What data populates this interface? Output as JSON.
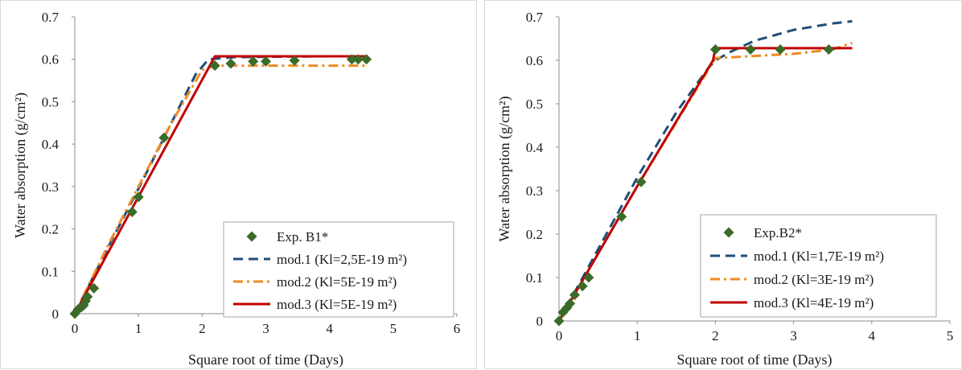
{
  "chart_data": [
    {
      "type": "scatter",
      "xlabel": "Square root of time (Days)",
      "ylabel": "Water absorption (g/cm²)",
      "xlim": [
        0,
        6
      ],
      "ylim": [
        0,
        0.7
      ],
      "x_ticks": [
        "0",
        "1",
        "2",
        "3",
        "4",
        "5",
        "6"
      ],
      "y_ticks": [
        "0",
        "0.1",
        "0.2",
        "0.3",
        "0.4",
        "0.5",
        "0.6",
        "0.7"
      ],
      "grid": false,
      "legend_position": "bottom-right",
      "series": [
        {
          "name": "Exp. B1*",
          "style": "marker",
          "color": "#3b6b28",
          "x": [
            0.0,
            0.05,
            0.1,
            0.14,
            0.17,
            0.2,
            0.3,
            0.9,
            1.0,
            1.4,
            2.2,
            2.45,
            2.8,
            3.0,
            3.45,
            4.35,
            4.45,
            4.58
          ],
          "y": [
            0.0,
            0.01,
            0.015,
            0.02,
            0.03,
            0.04,
            0.06,
            0.24,
            0.275,
            0.415,
            0.585,
            0.59,
            0.595,
            0.595,
            0.597,
            0.6,
            0.6,
            0.6
          ]
        },
        {
          "name": "mod.1 (Kl=2,5E-19 m²)",
          "style": "dashed",
          "color": "#1f4e79",
          "x": [
            0,
            0.5,
            1.0,
            1.5,
            1.9,
            2.1,
            2.5,
            3.0,
            4.0,
            4.6
          ],
          "y": [
            0,
            0.15,
            0.295,
            0.445,
            0.565,
            0.6,
            0.605,
            0.606,
            0.607,
            0.607
          ]
        },
        {
          "name": "mod.2 (Kl=5E-19 m²)",
          "style": "dashdot",
          "color": "#f08a24",
          "x": [
            0,
            0.5,
            1.0,
            1.5,
            2.0,
            2.2,
            3.0,
            4.0,
            4.6
          ],
          "y": [
            0,
            0.155,
            0.3,
            0.445,
            0.575,
            0.585,
            0.585,
            0.585,
            0.585
          ]
        },
        {
          "name": "mod.3 (Kl=5E-19 m²)",
          "style": "solid",
          "color": "#c00000",
          "x": [
            0,
            2.2,
            4.6
          ],
          "y": [
            0,
            0.607,
            0.607
          ]
        }
      ]
    },
    {
      "type": "scatter",
      "xlabel": "Square root of time (Days)",
      "ylabel": "Water absorption (g/cm²)",
      "xlim": [
        0,
        5
      ],
      "ylim": [
        0,
        0.7
      ],
      "x_ticks": [
        "0",
        "1",
        "2",
        "3",
        "4",
        "5"
      ],
      "y_ticks": [
        "0",
        "0.1",
        "0.2",
        "0.3",
        "0.4",
        "0.5",
        "0.6",
        "0.7"
      ],
      "grid": false,
      "legend_position": "bottom-right",
      "series": [
        {
          "name": "Exp.B2*",
          "style": "marker",
          "color": "#3b6b28",
          "x": [
            0.0,
            0.05,
            0.1,
            0.14,
            0.2,
            0.3,
            0.38,
            0.8,
            1.05,
            2.0,
            2.45,
            2.83,
            3.45
          ],
          "y": [
            0.0,
            0.02,
            0.03,
            0.04,
            0.06,
            0.08,
            0.1,
            0.24,
            0.32,
            0.625,
            0.625,
            0.625,
            0.625
          ]
        },
        {
          "name": "mod.1 (Kl=1,7E-19 m²)",
          "style": "dashed",
          "color": "#1f4e79",
          "x": [
            0,
            0.5,
            1.0,
            1.5,
            1.9,
            2.0,
            2.2,
            2.5,
            3.0,
            3.5,
            3.75
          ],
          "y": [
            0,
            0.165,
            0.33,
            0.48,
            0.58,
            0.6,
            0.62,
            0.645,
            0.67,
            0.685,
            0.69
          ]
        },
        {
          "name": "mod.2 (Kl=3E-19 m²)",
          "style": "dashdot",
          "color": "#f08a24",
          "x": [
            0,
            1.0,
            2.0,
            2.5,
            3.0,
            3.5,
            3.75
          ],
          "y": [
            0,
            0.31,
            0.605,
            0.61,
            0.615,
            0.625,
            0.64
          ]
        },
        {
          "name": "mod.3 (Kl=4E-19 m²)",
          "style": "solid",
          "color": "#c00000",
          "x": [
            0,
            1.0,
            1.97,
            2.0,
            3.75
          ],
          "y": [
            0,
            0.31,
            0.6,
            0.628,
            0.628
          ]
        }
      ]
    }
  ]
}
